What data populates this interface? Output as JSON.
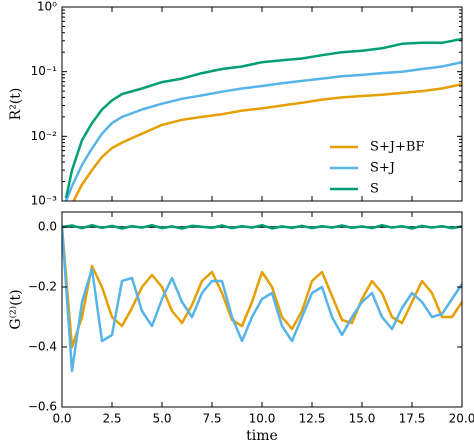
{
  "chart_data": [
    {
      "type": "line",
      "ylabel": "R²(t)",
      "log_y": true,
      "legend": "lower right",
      "x": [
        0.2,
        0.5,
        1,
        1.5,
        2,
        2.5,
        3,
        4,
        5,
        6,
        7,
        8,
        9,
        10,
        11,
        12,
        13,
        14,
        15,
        16,
        17,
        18,
        19,
        20
      ],
      "series": [
        {
          "name": "S+J+BF",
          "color": "#e69f00",
          "values": [
            0.0006,
            0.0009,
            0.0018,
            0.003,
            0.0048,
            0.0066,
            0.008,
            0.011,
            0.015,
            0.018,
            0.02,
            0.022,
            0.025,
            0.027,
            0.03,
            0.033,
            0.037,
            0.04,
            0.042,
            0.044,
            0.047,
            0.05,
            0.055,
            0.064
          ]
        },
        {
          "name": "S+J",
          "color": "#56b4e9",
          "values": [
            0.001,
            0.0017,
            0.0036,
            0.0065,
            0.011,
            0.016,
            0.02,
            0.026,
            0.032,
            0.038,
            0.043,
            0.049,
            0.055,
            0.06,
            0.066,
            0.072,
            0.078,
            0.085,
            0.089,
            0.095,
            0.1,
            0.11,
            0.12,
            0.14
          ]
        },
        {
          "name": "S",
          "color": "#009e73",
          "values": [
            0.0011,
            0.003,
            0.0087,
            0.016,
            0.026,
            0.036,
            0.045,
            0.055,
            0.069,
            0.078,
            0.095,
            0.11,
            0.12,
            0.14,
            0.15,
            0.16,
            0.18,
            0.2,
            0.21,
            0.23,
            0.27,
            0.28,
            0.28,
            0.32
          ]
        }
      ],
      "xlim": [
        0,
        20
      ],
      "xticks": [
        0,
        2.5,
        5,
        7.5,
        10,
        12.5,
        15,
        17.5,
        20
      ],
      "ylim": [
        0.001,
        1
      ],
      "yticks": [
        {
          "value": 0.001,
          "label": "10⁻³"
        },
        {
          "value": 0.01,
          "label": "10⁻²"
        },
        {
          "value": 0.1,
          "label": "10⁻¹"
        },
        {
          "value": 1,
          "label": "10⁰"
        }
      ]
    },
    {
      "type": "line",
      "ylabel": "G⁽²⁾(t)",
      "xlabel": "time",
      "x": [
        0,
        0.5,
        1,
        1.5,
        2,
        2.5,
        3,
        3.5,
        4,
        4.5,
        5,
        5.5,
        6,
        6.5,
        7,
        7.5,
        8,
        8.5,
        9,
        9.5,
        10,
        10.5,
        11,
        11.5,
        12,
        12.5,
        13,
        13.5,
        14,
        14.5,
        15,
        15.5,
        16,
        16.5,
        17,
        17.5,
        18,
        18.5,
        19,
        19.5,
        20
      ],
      "series": [
        {
          "name": "S+J+BF",
          "color": "#e69f00",
          "values": [
            0,
            -0.4,
            -0.3,
            -0.13,
            -0.2,
            -0.3,
            -0.33,
            -0.27,
            -0.2,
            -0.16,
            -0.2,
            -0.28,
            -0.32,
            -0.26,
            -0.18,
            -0.15,
            -0.22,
            -0.31,
            -0.33,
            -0.25,
            -0.15,
            -0.2,
            -0.3,
            -0.34,
            -0.28,
            -0.18,
            -0.15,
            -0.23,
            -0.31,
            -0.32,
            -0.24,
            -0.18,
            -0.22,
            -0.3,
            -0.32,
            -0.25,
            -0.18,
            -0.22,
            -0.3,
            -0.3,
            -0.25
          ]
        },
        {
          "name": "S+J",
          "color": "#56b4e9",
          "values": [
            0,
            -0.48,
            -0.25,
            -0.14,
            -0.38,
            -0.36,
            -0.18,
            -0.17,
            -0.28,
            -0.33,
            -0.24,
            -0.17,
            -0.25,
            -0.3,
            -0.22,
            -0.18,
            -0.18,
            -0.3,
            -0.38,
            -0.3,
            -0.24,
            -0.22,
            -0.33,
            -0.38,
            -0.3,
            -0.22,
            -0.2,
            -0.3,
            -0.36,
            -0.3,
            -0.25,
            -0.22,
            -0.3,
            -0.34,
            -0.27,
            -0.22,
            -0.25,
            -0.3,
            -0.29,
            -0.24,
            -0.19
          ]
        },
        {
          "name": "S",
          "color": "#009e73",
          "values": [
            0,
            0.005,
            -0.004,
            0.006,
            -0.003,
            0.004,
            -0.005,
            0.003,
            -0.002,
            0.006,
            -0.004,
            0.002,
            -0.005,
            0.004,
            0.001,
            -0.003,
            0.005,
            -0.004,
            0.003,
            -0.002,
            0.006,
            -0.005,
            0.002,
            -0.003,
            0.004,
            -0.004,
            0.003,
            -0.002,
            0.005,
            -0.003,
            0.002,
            -0.004,
            0.006,
            -0.002,
            0.003,
            -0.005,
            0.004,
            -0.002,
            0.003,
            -0.004,
            0.002
          ]
        }
      ],
      "xlim": [
        0,
        20
      ],
      "xticks": [
        {
          "value": 0,
          "label": "0.0"
        },
        {
          "value": 2.5,
          "label": "2.5"
        },
        {
          "value": 5,
          "label": "5.0"
        },
        {
          "value": 7.5,
          "label": "7.5"
        },
        {
          "value": 10,
          "label": "10.0"
        },
        {
          "value": 12.5,
          "label": "12.5"
        },
        {
          "value": 15,
          "label": "15.0"
        },
        {
          "value": 17.5,
          "label": "17.5"
        },
        {
          "value": 20,
          "label": "20.0"
        }
      ],
      "ylim": [
        -0.6,
        0.05
      ],
      "yticks": [
        {
          "value": -0.6,
          "label": "−0.6"
        },
        {
          "value": -0.4,
          "label": "−0.4"
        },
        {
          "value": -0.2,
          "label": "−0.2"
        },
        {
          "value": 0,
          "label": "0.0"
        }
      ]
    }
  ]
}
